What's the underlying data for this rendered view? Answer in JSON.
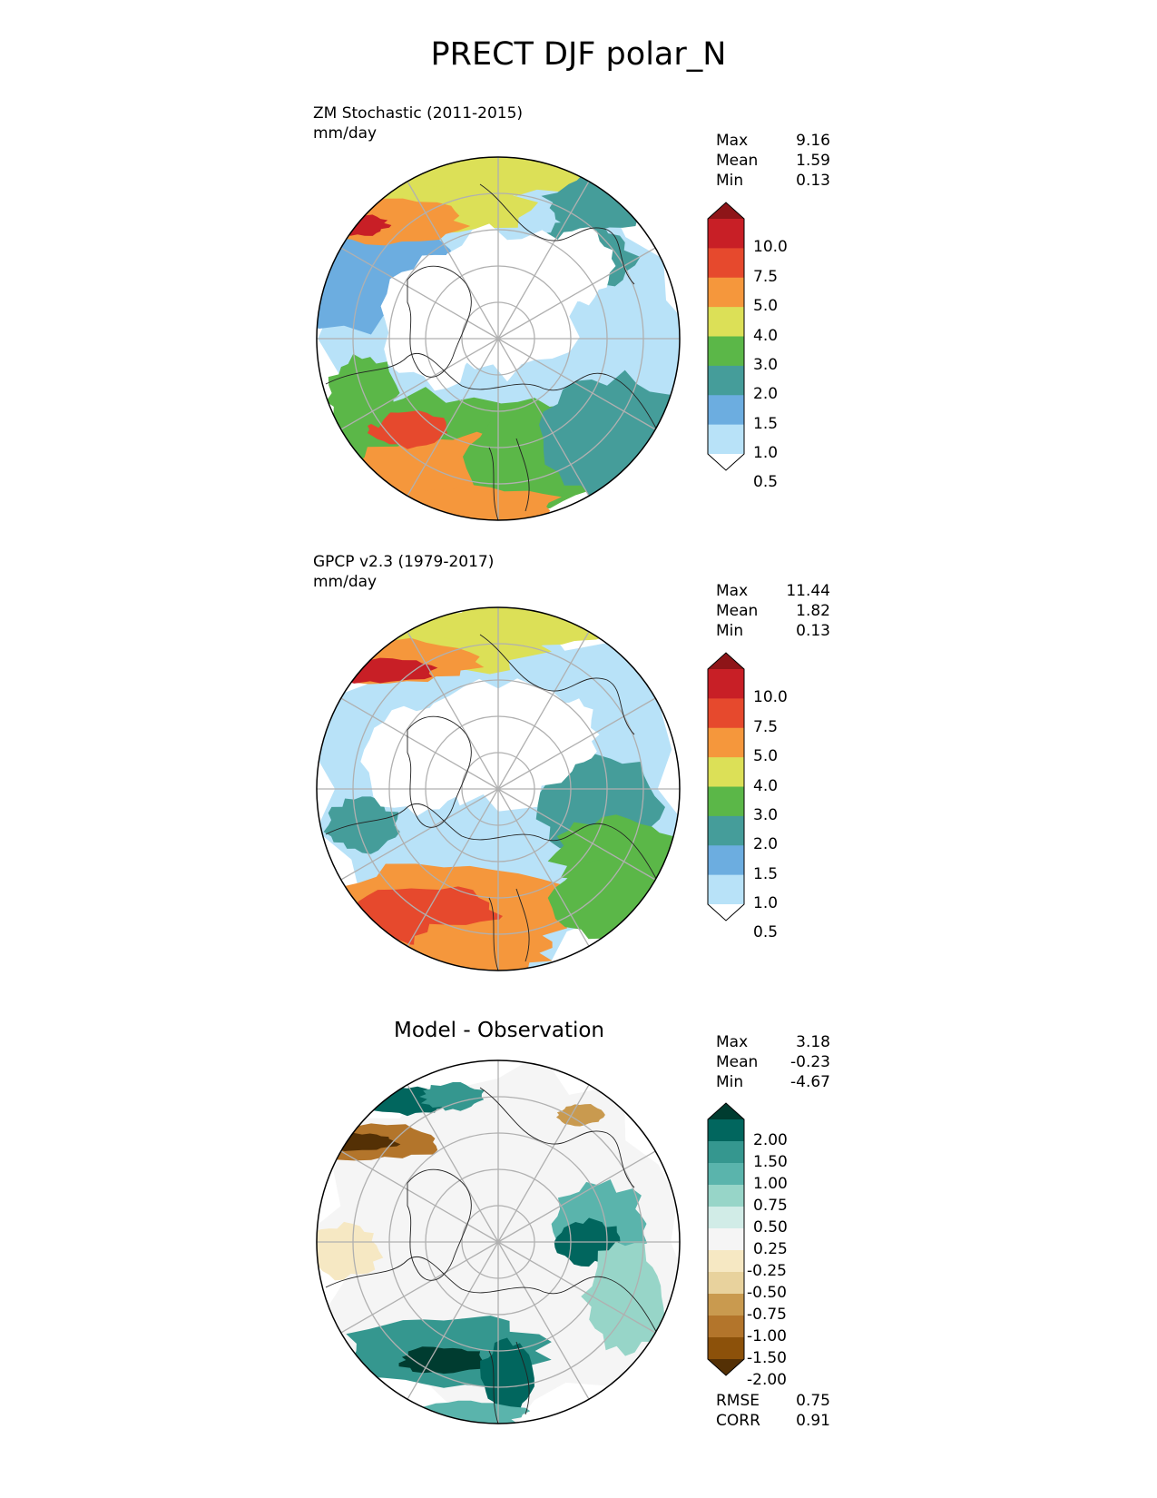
{
  "title": "PRECT DJF polar_N",
  "panels": [
    {
      "title_line1": "ZM Stochastic (2011-2015)",
      "title_line2": "mm/day",
      "stats": [
        {
          "label": "Max",
          "value": "9.16"
        },
        {
          "label": "Mean",
          "value": "1.59"
        },
        {
          "label": "Min",
          "value": "0.13"
        }
      ],
      "colorbar": {
        "labels": [
          "10.0",
          "7.5",
          "5.0",
          "4.0",
          "3.0",
          "2.0",
          "1.5",
          "1.0",
          "0.5"
        ],
        "colors": [
          "#8e1518",
          "#c81f26",
          "#e6492d",
          "#f5973c",
          "#dce057",
          "#5bb748",
          "#459d9a",
          "#6cade0",
          "#b8e2f8",
          "#ffffff"
        ]
      }
    },
    {
      "title_line1": "GPCP v2.3 (1979-2017)",
      "title_line2": "mm/day",
      "stats": [
        {
          "label": "Max",
          "value": "11.44"
        },
        {
          "label": "Mean",
          "value": "1.82"
        },
        {
          "label": "Min",
          "value": "0.13"
        }
      ],
      "colorbar": {
        "labels": [
          "10.0",
          "7.5",
          "5.0",
          "4.0",
          "3.0",
          "2.0",
          "1.5",
          "1.0",
          "0.5"
        ],
        "colors": [
          "#8e1518",
          "#c81f26",
          "#e6492d",
          "#f5973c",
          "#dce057",
          "#5bb748",
          "#459d9a",
          "#6cade0",
          "#b8e2f8",
          "#ffffff"
        ]
      }
    },
    {
      "title_line1": "Model - Observation",
      "stats": [
        {
          "label": "Max",
          "value": "3.18"
        },
        {
          "label": "Mean",
          "value": "-0.23"
        },
        {
          "label": "Min",
          "value": "-4.67"
        }
      ],
      "colorbar": {
        "labels": [
          "2.00",
          "1.50",
          "1.00",
          "0.75",
          "0.50",
          "0.25",
          "-0.25",
          "-0.50",
          "-0.75",
          "-1.00",
          "-1.50",
          "-2.00"
        ],
        "colors": [
          "#003c30",
          "#01665e",
          "#35978f",
          "#5ab4ac",
          "#97d5c8",
          "#d1ece7",
          "#f5f5f5",
          "#f6e8c3",
          "#e8d29d",
          "#c99a4f",
          "#b3752b",
          "#8c510a",
          "#543005"
        ]
      },
      "metrics": [
        {
          "label": "RMSE",
          "value": "0.75"
        },
        {
          "label": "CORR",
          "value": "0.91"
        }
      ]
    }
  ]
}
